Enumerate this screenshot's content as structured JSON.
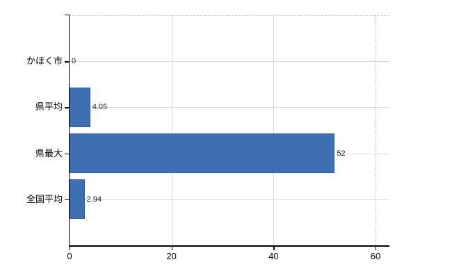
{
  "chart_data": {
    "type": "bar",
    "orientation": "horizontal",
    "categories": [
      "かほく市",
      "県平均",
      "県最大",
      "全国平均"
    ],
    "values": [
      0,
      4.05,
      52,
      2.94
    ],
    "value_labels": [
      "0",
      "4.05",
      "52",
      "2.94"
    ],
    "x_tick_labels": [
      "0",
      "20",
      "40",
      "60"
    ],
    "x_tick_values": [
      0,
      20,
      40,
      60
    ],
    "xlim": [
      0,
      60
    ],
    "grid": true,
    "legend": false,
    "colors": {
      "bar_fill": "#3e6fb3",
      "bar_border": "#2f5f9e",
      "axis": "#000000",
      "gridline_h": "#d9dcd4",
      "gridline_v": "#d7d7d7",
      "dashed_line": "#c9c9c9",
      "background": "#ffffff",
      "text": "#000000"
    }
  }
}
